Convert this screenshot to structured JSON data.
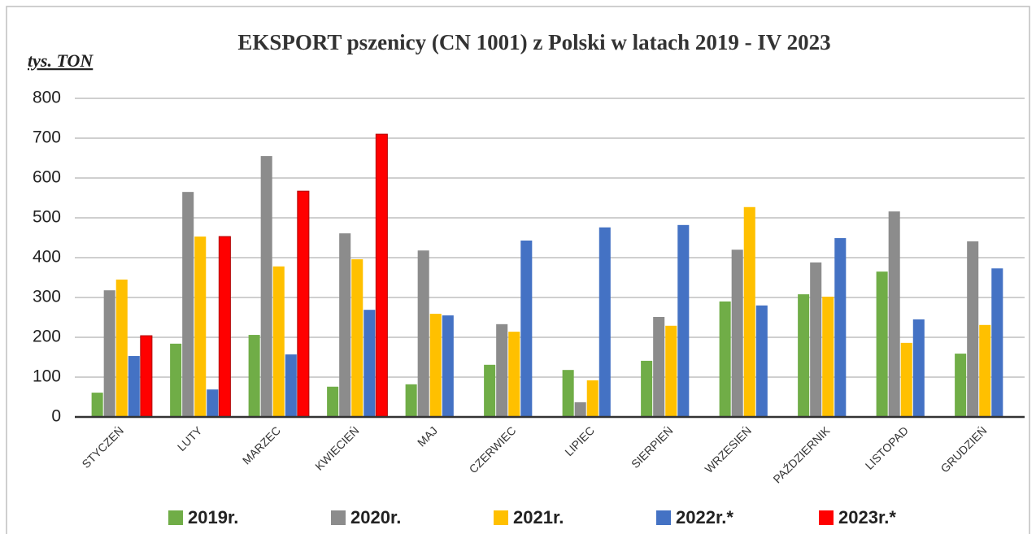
{
  "chart_data": {
    "type": "bar",
    "title": "EKSPORT pszenicy (CN 1001) z Polski w latach 2019 - IV 2023",
    "y_label": "tys. TON",
    "categories": [
      "STYCZEŃ",
      "LUTY",
      "MARZEC",
      "KWIECIEŃ",
      "MAJ",
      "CZERWIEC",
      "LIPIEC",
      "SIERPIEŃ",
      "WRZESIEŃ",
      "PAŹDZIERNIK",
      "LISTOPAD",
      "GRUDZIEŃ"
    ],
    "series": [
      {
        "name": "2019r.",
        "color": "#70ad47",
        "values": [
          61,
          184,
          206,
          76,
          82,
          131,
          118,
          141,
          290,
          308,
          365,
          159
        ]
      },
      {
        "name": "2020r.",
        "color": "#8c8c8c",
        "values": [
          318,
          565,
          655,
          461,
          418,
          233,
          37,
          251,
          420,
          388,
          516,
          441
        ]
      },
      {
        "name": "2021r.",
        "color": "#ffc000",
        "values": [
          345,
          453,
          378,
          396,
          259,
          214,
          92,
          229,
          527,
          302,
          186,
          231
        ]
      },
      {
        "name": "2022r.*",
        "color": "#4472c4",
        "values": [
          153,
          69,
          157,
          269,
          255,
          443,
          476,
          482,
          280,
          449,
          245,
          373
        ]
      },
      {
        "name": "2023r.*",
        "color": "#ff0000",
        "values": [
          204,
          453,
          567,
          710,
          null,
          null,
          null,
          null,
          null,
          null,
          null,
          null
        ]
      }
    ],
    "ylim": [
      0,
      800
    ],
    "yticks": [
      0,
      100,
      200,
      300,
      400,
      500,
      600,
      700,
      800
    ],
    "grid": true
  }
}
